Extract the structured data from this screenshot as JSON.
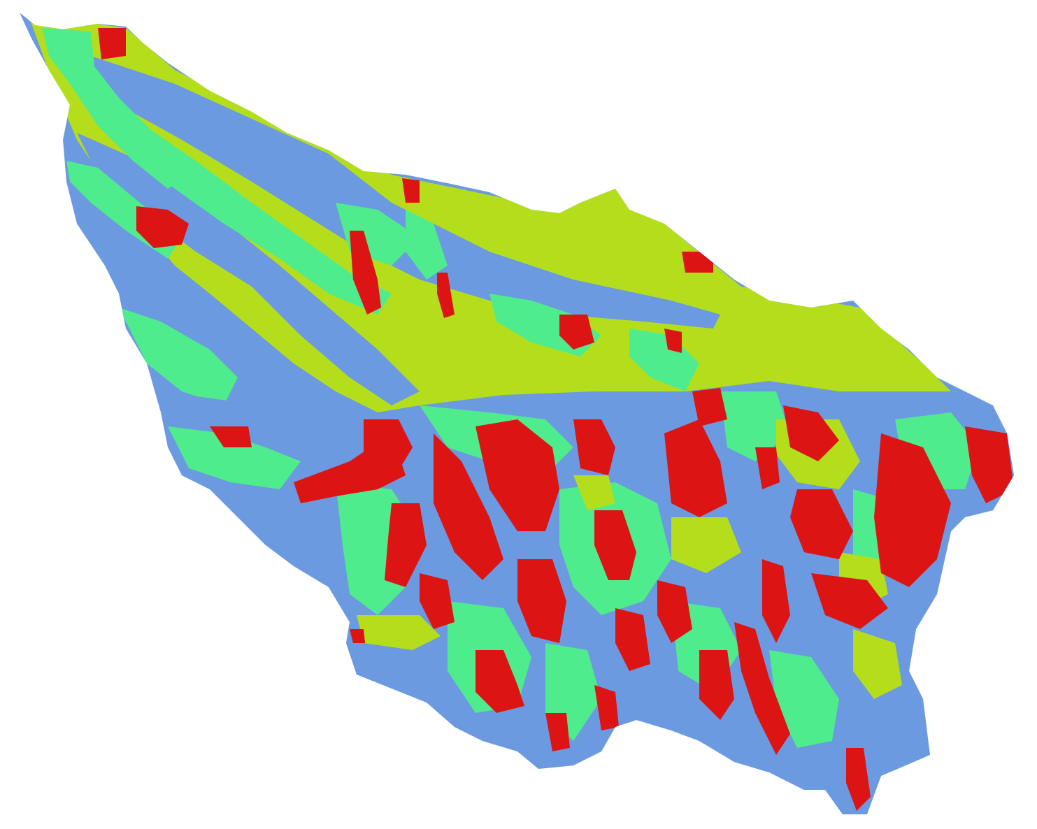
{
  "map": {
    "palette": {
      "blue": "#6b9ae0",
      "green": "#4eec8c",
      "lime": "#b4de1c",
      "red": "#dc1414",
      "background": "#ffffff"
    },
    "class_order": [
      "blue",
      "green",
      "lime",
      "red"
    ]
  }
}
